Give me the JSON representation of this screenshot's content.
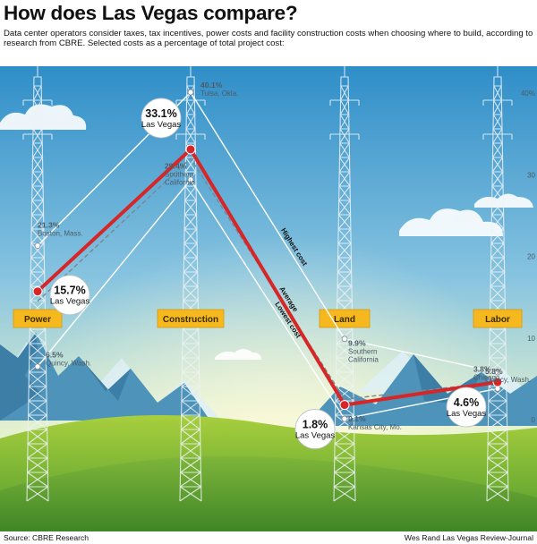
{
  "title": "How does Las Vegas compare?",
  "intro": "Data center operators consider taxes, tax incentives, power costs and facility construction costs when choosing where to build, according to research from CBRE. Selected costs as a percentage of total project cost:",
  "footer": {
    "source": "Source: CBRE Research",
    "credit": "Wes Rand Las Vegas Review-Journal"
  },
  "colors": {
    "las_vegas": "#d62628",
    "highest": "#ffffff",
    "average": "#7a8791",
    "lowest": "#ffffff",
    "category_fill": "#f5b81e"
  },
  "chart_data": {
    "type": "line",
    "categories": [
      "Power",
      "Construction",
      "Land",
      "Labor"
    ],
    "ylim": [
      0,
      40
    ],
    "yticks": [
      0,
      10,
      20,
      30,
      40
    ],
    "ytick_labels": [
      "0",
      "10",
      "20",
      "30",
      "40%"
    ],
    "series": [
      {
        "name": "Highest cost",
        "values": [
          21.3,
          40.1,
          9.9,
          5.8
        ]
      },
      {
        "name": "Average",
        "values": [
          14.5,
          32.0,
          2.5,
          4.6
        ]
      },
      {
        "name": "Lowest cost",
        "values": [
          6.5,
          29.4,
          0.1,
          3.8
        ]
      },
      {
        "values": [
          15.7,
          33.1,
          1.8,
          4.6
        ]
      }
    ],
    "point_labels": [
      {
        "series": 0,
        "index": 0,
        "value": "21.3%",
        "place": [
          "Boston, Mass."
        ]
      },
      {
        "series": 0,
        "index": 1,
        "value": "40.1%",
        "place": [
          "Tulsa, Okla."
        ]
      },
      {
        "series": 0,
        "index": 2,
        "value": "9.9%",
        "place": [
          "Southern",
          "California"
        ]
      },
      {
        "series": 0,
        "index": 3,
        "value": "5.8%",
        "place": [
          "Quincy, Wash."
        ]
      },
      {
        "series": 2,
        "index": 0,
        "value": "6.5%",
        "place": [
          "Quincy, Wash."
        ]
      },
      {
        "series": 2,
        "index": 1,
        "value": "29.4%",
        "place": [
          "Southern",
          "California"
        ]
      },
      {
        "series": 2,
        "index": 2,
        "value": "0.1%",
        "place": [
          "Kansas City, Mo."
        ]
      },
      {
        "series": 2,
        "index": 3,
        "value": "3.8%",
        "place": [
          "Chicago"
        ]
      }
    ],
    "las_vegas_labels": [
      {
        "value": "15.7%",
        "sub": "Las Vegas"
      },
      {
        "value": "33.1%",
        "sub": "Las Vegas"
      },
      {
        "value": "1.8%",
        "sub": "Las Vegas"
      },
      {
        "value": "4.6%",
        "sub": "Las Vegas"
      }
    ]
  }
}
